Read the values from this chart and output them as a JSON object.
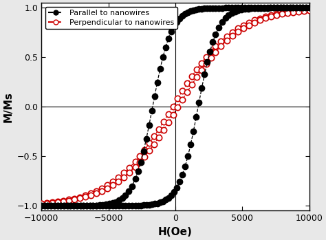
{
  "title": "",
  "xlabel": "H(Oe)",
  "ylabel": "M/Ms",
  "xlim": [
    -10000,
    10000
  ],
  "ylim": [
    -1.05,
    1.05
  ],
  "xticks": [
    -10000,
    -5000,
    0,
    5000,
    10000
  ],
  "yticks": [
    -1.0,
    -0.5,
    0.0,
    0.5,
    1.0
  ],
  "parallel_color": "black",
  "perpendicular_color": "#cc0000",
  "legend_labels": [
    "Parallel to nanowires",
    "Perpendicular to nanowires"
  ],
  "bg_color": "#e8e8e8",
  "Hc_par": 1700,
  "Hs_par": 1400,
  "Hc_perp": 200,
  "Hs_perp": 4500,
  "n_line": 500,
  "n_markers_par": 90,
  "n_markers_perp": 55,
  "marker_size_par": 6,
  "marker_size_perp": 6
}
